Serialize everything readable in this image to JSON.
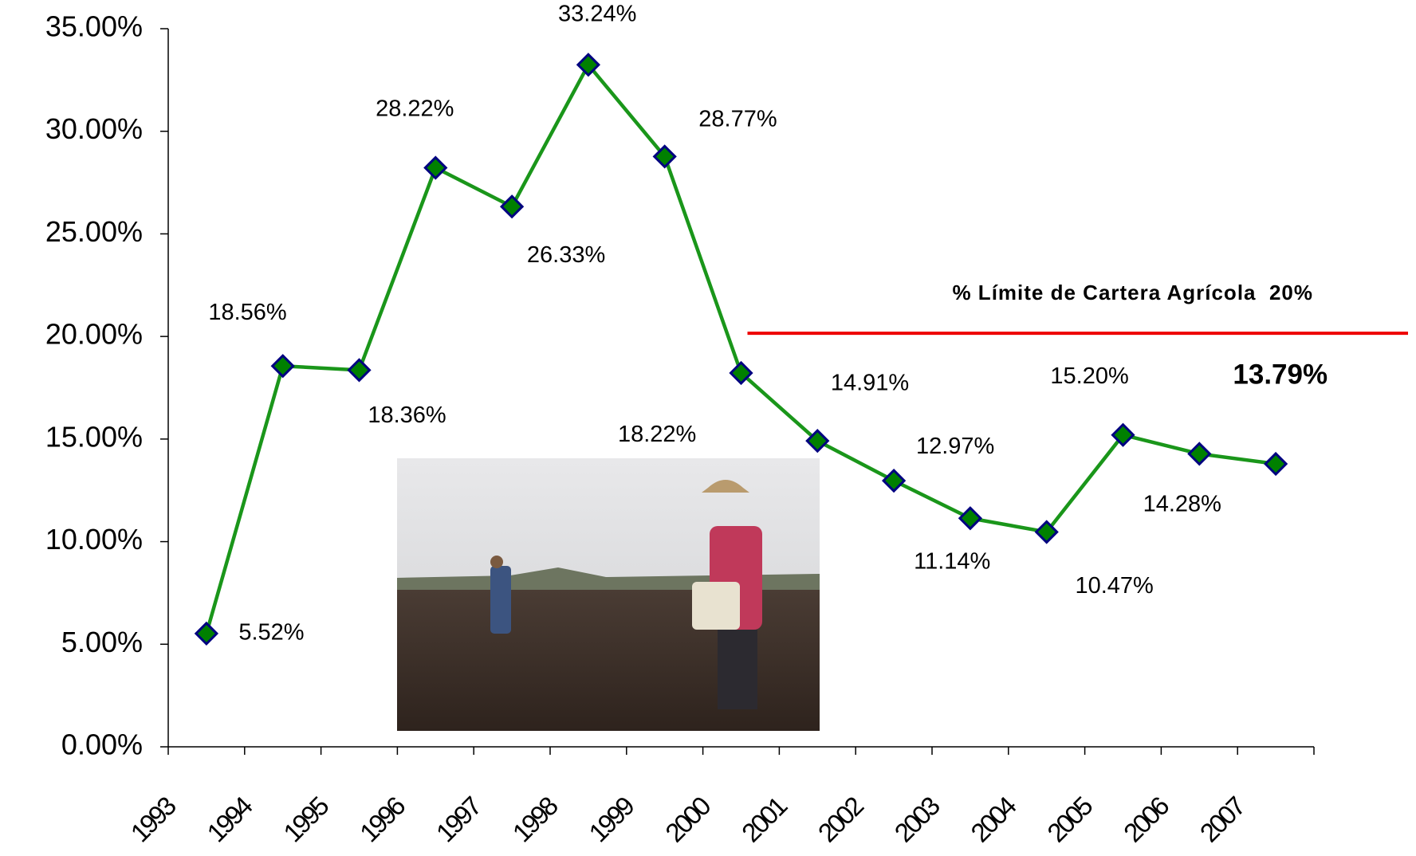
{
  "chart_data": {
    "type": "line",
    "categories": [
      "1993",
      "1994",
      "1995",
      "1996",
      "1997",
      "1998",
      "1999",
      "2000",
      "2001",
      "2002",
      "2003",
      "2004",
      "2005",
      "2006",
      "2007"
    ],
    "series": [
      {
        "color": "#1a961a",
        "values": [
          5.52,
          18.56,
          18.36,
          28.22,
          26.33,
          33.24,
          28.77,
          18.22,
          14.91,
          12.97,
          11.14,
          10.47,
          15.2,
          14.28,
          13.79
        ],
        "value_labels": [
          "5.52%",
          "18.56%",
          "18.36%",
          "28.22%",
          "26.33%",
          "33.24%",
          "28.77%",
          "18.22%",
          "14.91%",
          "12.97%",
          "11.14%",
          "10.47%",
          "15.20%",
          "14.28%",
          "13.79%"
        ]
      }
    ],
    "ylim": [
      0,
      35
    ],
    "yticks": [
      {
        "value": 0,
        "label": "0.00%"
      },
      {
        "value": 5,
        "label": "5.00%"
      },
      {
        "value": 10,
        "label": "10.00%"
      },
      {
        "value": 15,
        "label": "15.00%"
      },
      {
        "value": 20,
        "label": "20.00%"
      },
      {
        "value": 25,
        "label": "25.00%"
      },
      {
        "value": 30,
        "label": "30.00%"
      },
      {
        "value": 35,
        "label": "35.00%"
      }
    ],
    "reference_line": {
      "value": 20,
      "label": "% Límite de Cartera Agrícola  20%",
      "color": "#ee0000"
    }
  }
}
